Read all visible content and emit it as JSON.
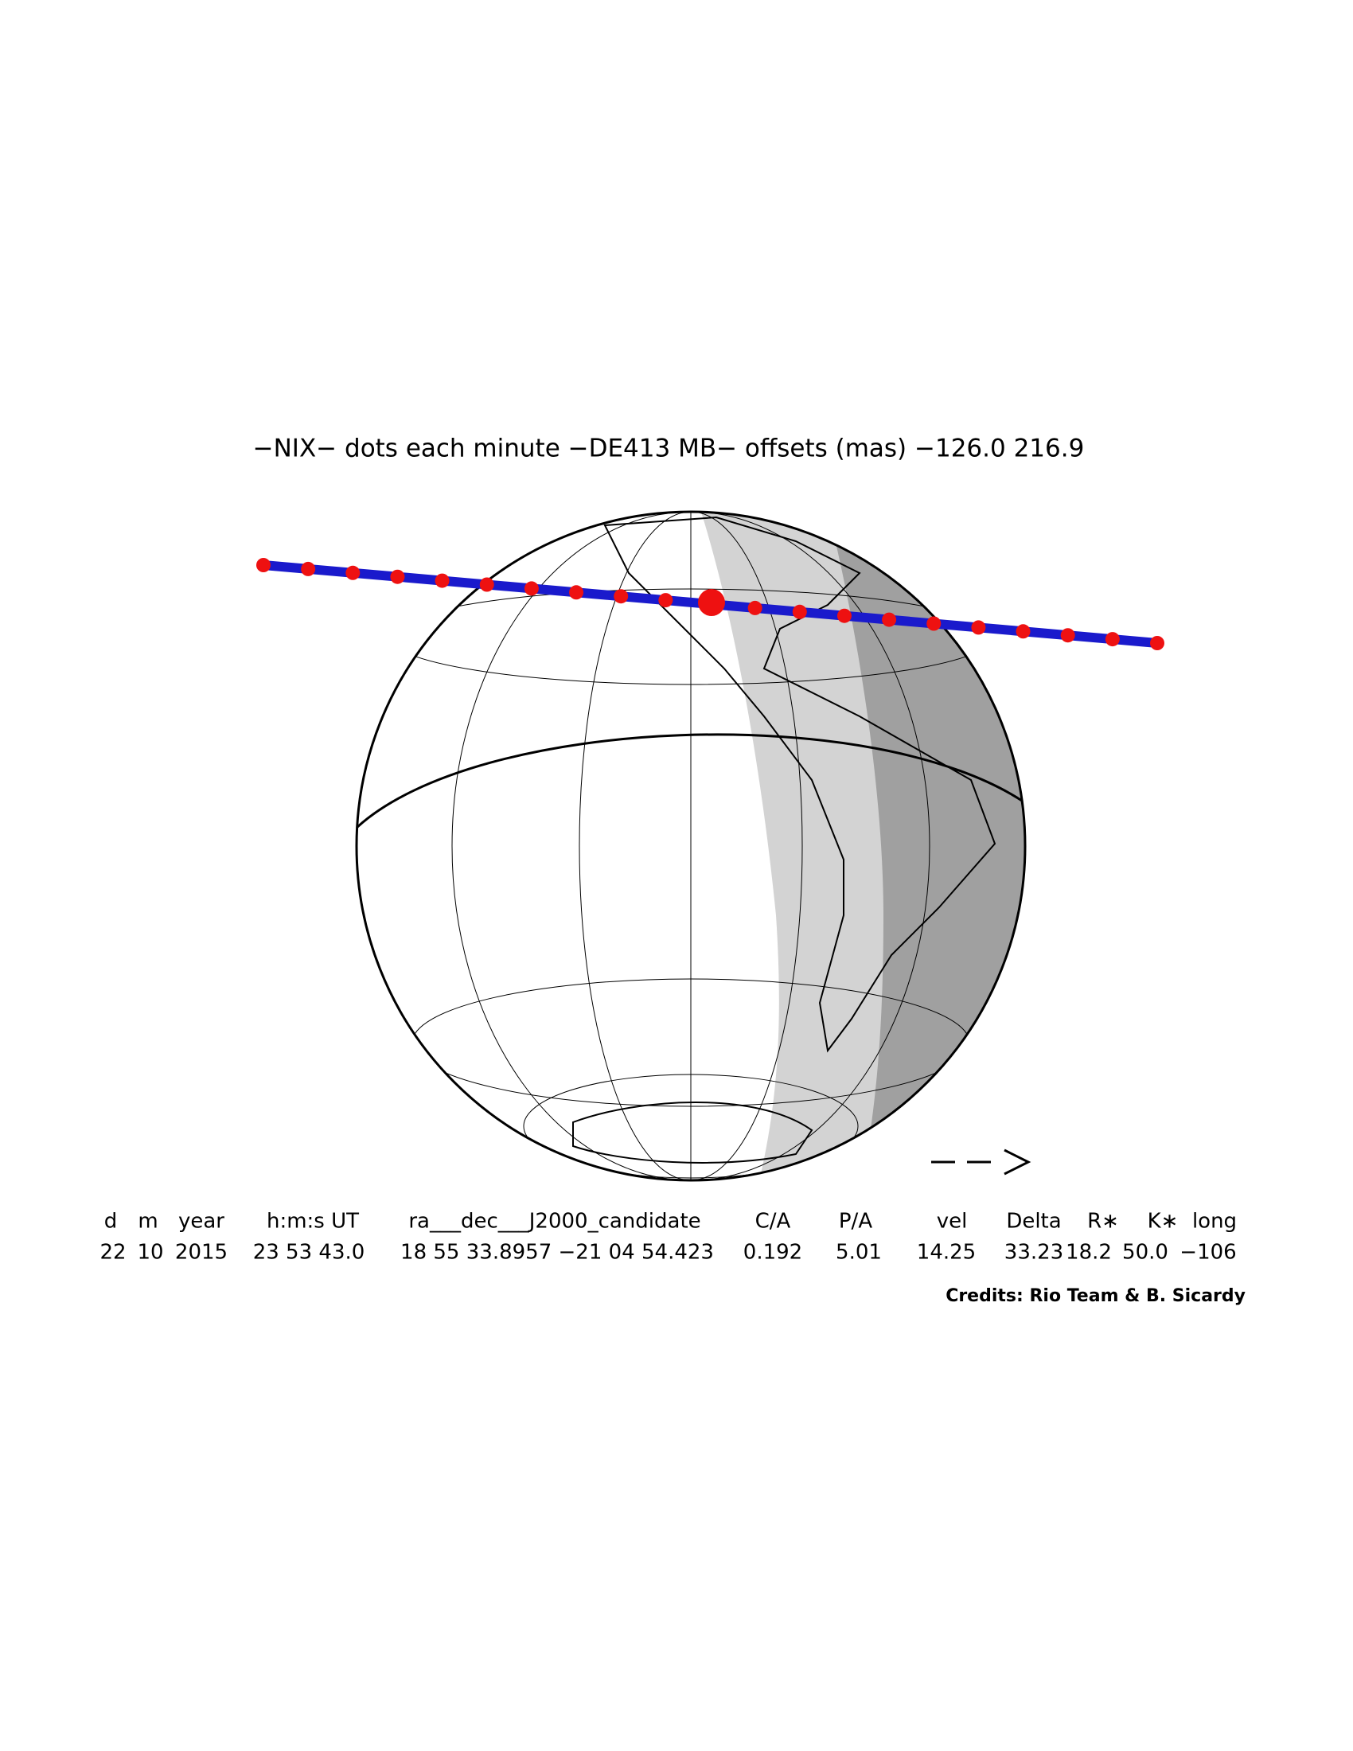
{
  "title": "−NIX− dots each minute −DE413 MB− offsets (mas) −126.0  216.9",
  "table": {
    "headers": [
      "d",
      "m",
      "year",
      "h:m:s UT",
      "ra___dec___J2000_candidate",
      "C/A",
      "P/A",
      "vel",
      "Delta",
      "R∗",
      "K∗",
      "long"
    ],
    "values": [
      "22",
      "10",
      "2015",
      "23 53 43.0",
      "18 55 33.8957 −21 04 54.423",
      "0.192",
      "5.01",
      "14.25",
      "33.23",
      "18.2",
      "50.0",
      "−106"
    ]
  },
  "credits": "Credits: Rio Team & B. Sicardy"
}
